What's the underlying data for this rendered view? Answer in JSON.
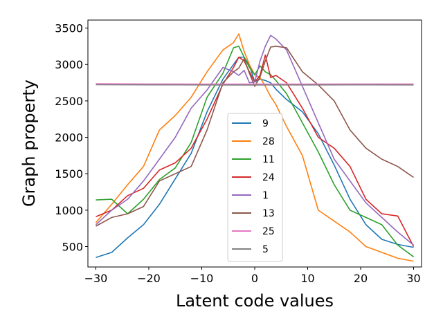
{
  "chart_data": {
    "type": "line",
    "title": "",
    "xlabel": "Latent code values",
    "ylabel": "Graph property",
    "xlim": [
      -31.5,
      31.5
    ],
    "ylim": [
      220,
      3610
    ],
    "xticks": [
      -30,
      -20,
      -10,
      0,
      10,
      20,
      30
    ],
    "xtick_labels": [
      "−30",
      "−20",
      "−10",
      "0",
      "10",
      "20",
      "30"
    ],
    "yticks": [
      500,
      1000,
      1500,
      2000,
      2500,
      3000,
      3500
    ],
    "ytick_labels": [
      "500",
      "1000",
      "1500",
      "2000",
      "2500",
      "3000",
      "3500"
    ],
    "grid": false,
    "legend_position": "lower-center",
    "series": [
      {
        "name": "9",
        "color": "#1f77b4",
        "x": [
          -30,
          -27,
          -24,
          -21,
          -18,
          -15,
          -12,
          -9,
          -6,
          -4,
          -3,
          -2,
          -1,
          0,
          1,
          2,
          3,
          4,
          6,
          9,
          12,
          15,
          18,
          21,
          24,
          27,
          30
        ],
        "y": [
          350,
          420,
          620,
          800,
          1080,
          1430,
          1780,
          2350,
          2800,
          3000,
          3100,
          3100,
          2990,
          2760,
          2800,
          2780,
          2750,
          2660,
          2520,
          2350,
          2050,
          1620,
          1150,
          800,
          600,
          530,
          490
        ]
      },
      {
        "name": "28",
        "color": "#ff7f0e",
        "x": [
          -30,
          -27,
          -24,
          -21,
          -18,
          -15,
          -12,
          -9,
          -6,
          -4,
          -3,
          -2,
          -1,
          0,
          1,
          2,
          3,
          4,
          6,
          9,
          12,
          15,
          18,
          21,
          24,
          27,
          30
        ],
        "y": [
          830,
          1080,
          1350,
          1600,
          2100,
          2300,
          2550,
          2900,
          3200,
          3300,
          3420,
          3180,
          3000,
          2860,
          2820,
          2700,
          2560,
          2450,
          2150,
          1750,
          1000,
          850,
          700,
          500,
          420,
          340,
          300
        ]
      },
      {
        "name": "11",
        "color": "#2ca02c",
        "x": [
          -30,
          -27,
          -24,
          -21,
          -18,
          -15,
          -12,
          -9,
          -6,
          -4,
          -3,
          -2,
          -1,
          0,
          1,
          2,
          3,
          4,
          6,
          9,
          12,
          15,
          18,
          21,
          24,
          27,
          30
        ],
        "y": [
          1140,
          1150,
          950,
          1150,
          1420,
          1580,
          1930,
          2550,
          2880,
          3230,
          3250,
          3100,
          2960,
          2860,
          2980,
          2900,
          2860,
          2780,
          2600,
          2200,
          1800,
          1350,
          1000,
          900,
          800,
          520,
          360
        ]
      },
      {
        "name": "24",
        "color": "#d62728",
        "x": [
          -30,
          -27,
          -24,
          -21,
          -18,
          -15,
          -12,
          -9,
          -6,
          -4,
          -3,
          -2,
          -1,
          0,
          1,
          2,
          3,
          4,
          6,
          9,
          12,
          15,
          18,
          21,
          24,
          27,
          30
        ],
        "y": [
          910,
          1000,
          1200,
          1300,
          1550,
          1650,
          1850,
          2250,
          2730,
          2960,
          3100,
          3050,
          2900,
          2760,
          2850,
          3130,
          2820,
          2850,
          2750,
          2400,
          2000,
          1850,
          1600,
          1150,
          950,
          920,
          500
        ]
      },
      {
        "name": "1",
        "color": "#9467bd",
        "x": [
          -30,
          -27,
          -24,
          -21,
          -18,
          -15,
          -12,
          -9,
          -6,
          -4,
          -3,
          -2,
          -1,
          0,
          1,
          2,
          3,
          4,
          6,
          9,
          12,
          15,
          18,
          21,
          24,
          27,
          30
        ],
        "y": [
          800,
          1000,
          1150,
          1400,
          1700,
          2000,
          2400,
          2650,
          2960,
          2900,
          2850,
          2920,
          2750,
          2760,
          3050,
          3250,
          3400,
          3350,
          3200,
          2700,
          2200,
          1700,
          1400,
          1100,
          900,
          700,
          520
        ]
      },
      {
        "name": "13",
        "color": "#8c564b",
        "x": [
          -30,
          -27,
          -24,
          -21,
          -18,
          -15,
          -12,
          -9,
          -6,
          -4,
          -3,
          -2,
          -1,
          0,
          1,
          2,
          3,
          4,
          6,
          9,
          12,
          15,
          18,
          21,
          24,
          27,
          30
        ],
        "y": [
          780,
          900,
          950,
          1050,
          1400,
          1500,
          1600,
          2100,
          2750,
          2900,
          2950,
          3080,
          2880,
          2700,
          2830,
          3050,
          3240,
          3250,
          3230,
          2900,
          2720,
          2500,
          2100,
          1850,
          1700,
          1600,
          1450
        ]
      },
      {
        "name": "25",
        "color": "#e377c2",
        "x": [
          -30,
          -20,
          -10,
          0,
          10,
          20,
          30
        ],
        "y": [
          2735,
          2733,
          2732,
          2731,
          2732,
          2733,
          2733
        ]
      },
      {
        "name": "5",
        "color": "#7f7f7f",
        "x": [
          -30,
          -20,
          -10,
          0,
          10,
          20,
          30
        ],
        "y": [
          2722,
          2720,
          2719,
          2718,
          2719,
          2720,
          2719
        ]
      }
    ]
  }
}
